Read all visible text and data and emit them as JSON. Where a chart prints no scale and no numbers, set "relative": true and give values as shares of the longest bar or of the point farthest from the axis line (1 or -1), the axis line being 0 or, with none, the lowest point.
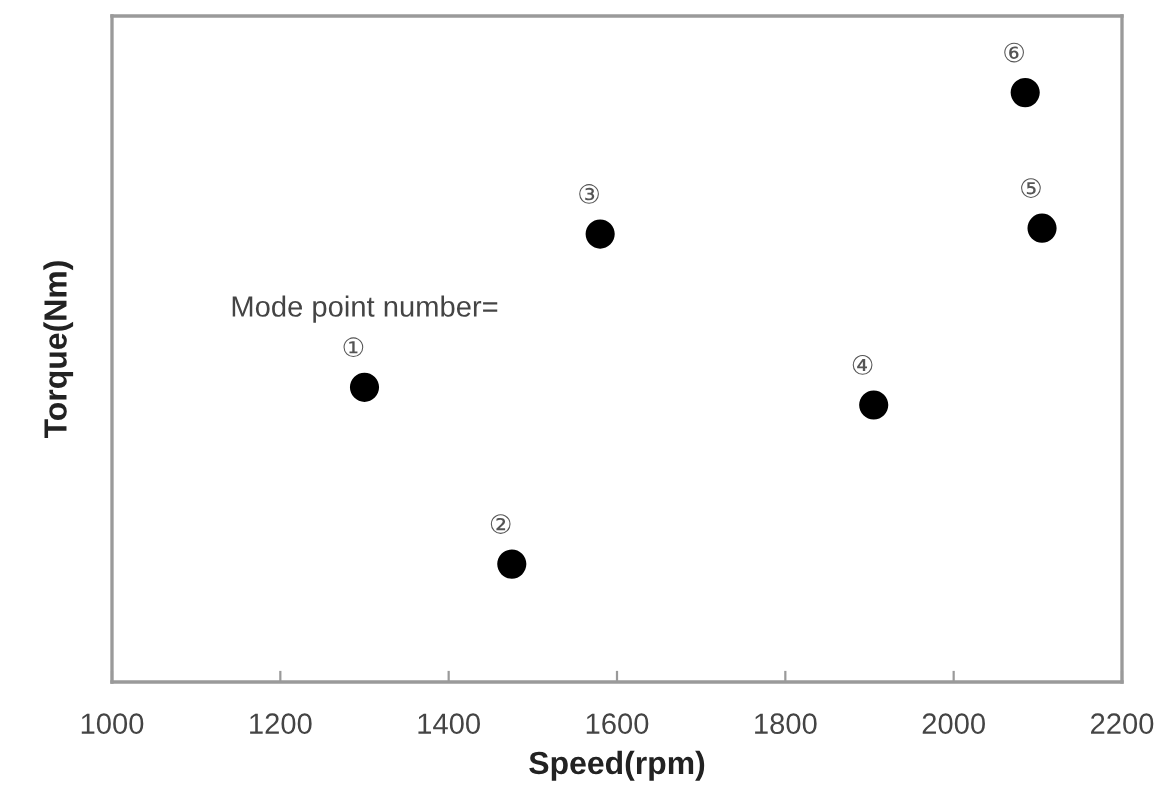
{
  "chart_data": {
    "type": "scatter",
    "xlabel": "Speed(rpm)",
    "ylabel": "Torque(Nm)",
    "relative": true,
    "marker": "circle",
    "x": [
      1300,
      1475,
      1580,
      1905,
      2105,
      2085
    ],
    "series": [
      {
        "color": "#000000",
        "values": [
          0.5,
          0.2,
          0.76,
          0.47,
          0.77,
          1
        ]
      }
    ],
    "xlim": [
      1000,
      2200
    ],
    "xticks": [
      1000,
      1200,
      1400,
      1600,
      1800,
      2000,
      2200
    ],
    "annotations": [
      "Mode point number=",
      {
        "text": "①",
        "x": 1300,
        "y": 0.5
      },
      {
        "text": "②",
        "x": 1475,
        "y": 0.2
      },
      {
        "text": "③",
        "x": 1580,
        "y": 0.76
      },
      {
        "text": "④",
        "x": 1905,
        "y": 0.47
      },
      {
        "text": "⑤",
        "x": 2105,
        "y": 0.77
      },
      {
        "text": "⑥",
        "x": 2085,
        "y": 1
      }
    ]
  }
}
